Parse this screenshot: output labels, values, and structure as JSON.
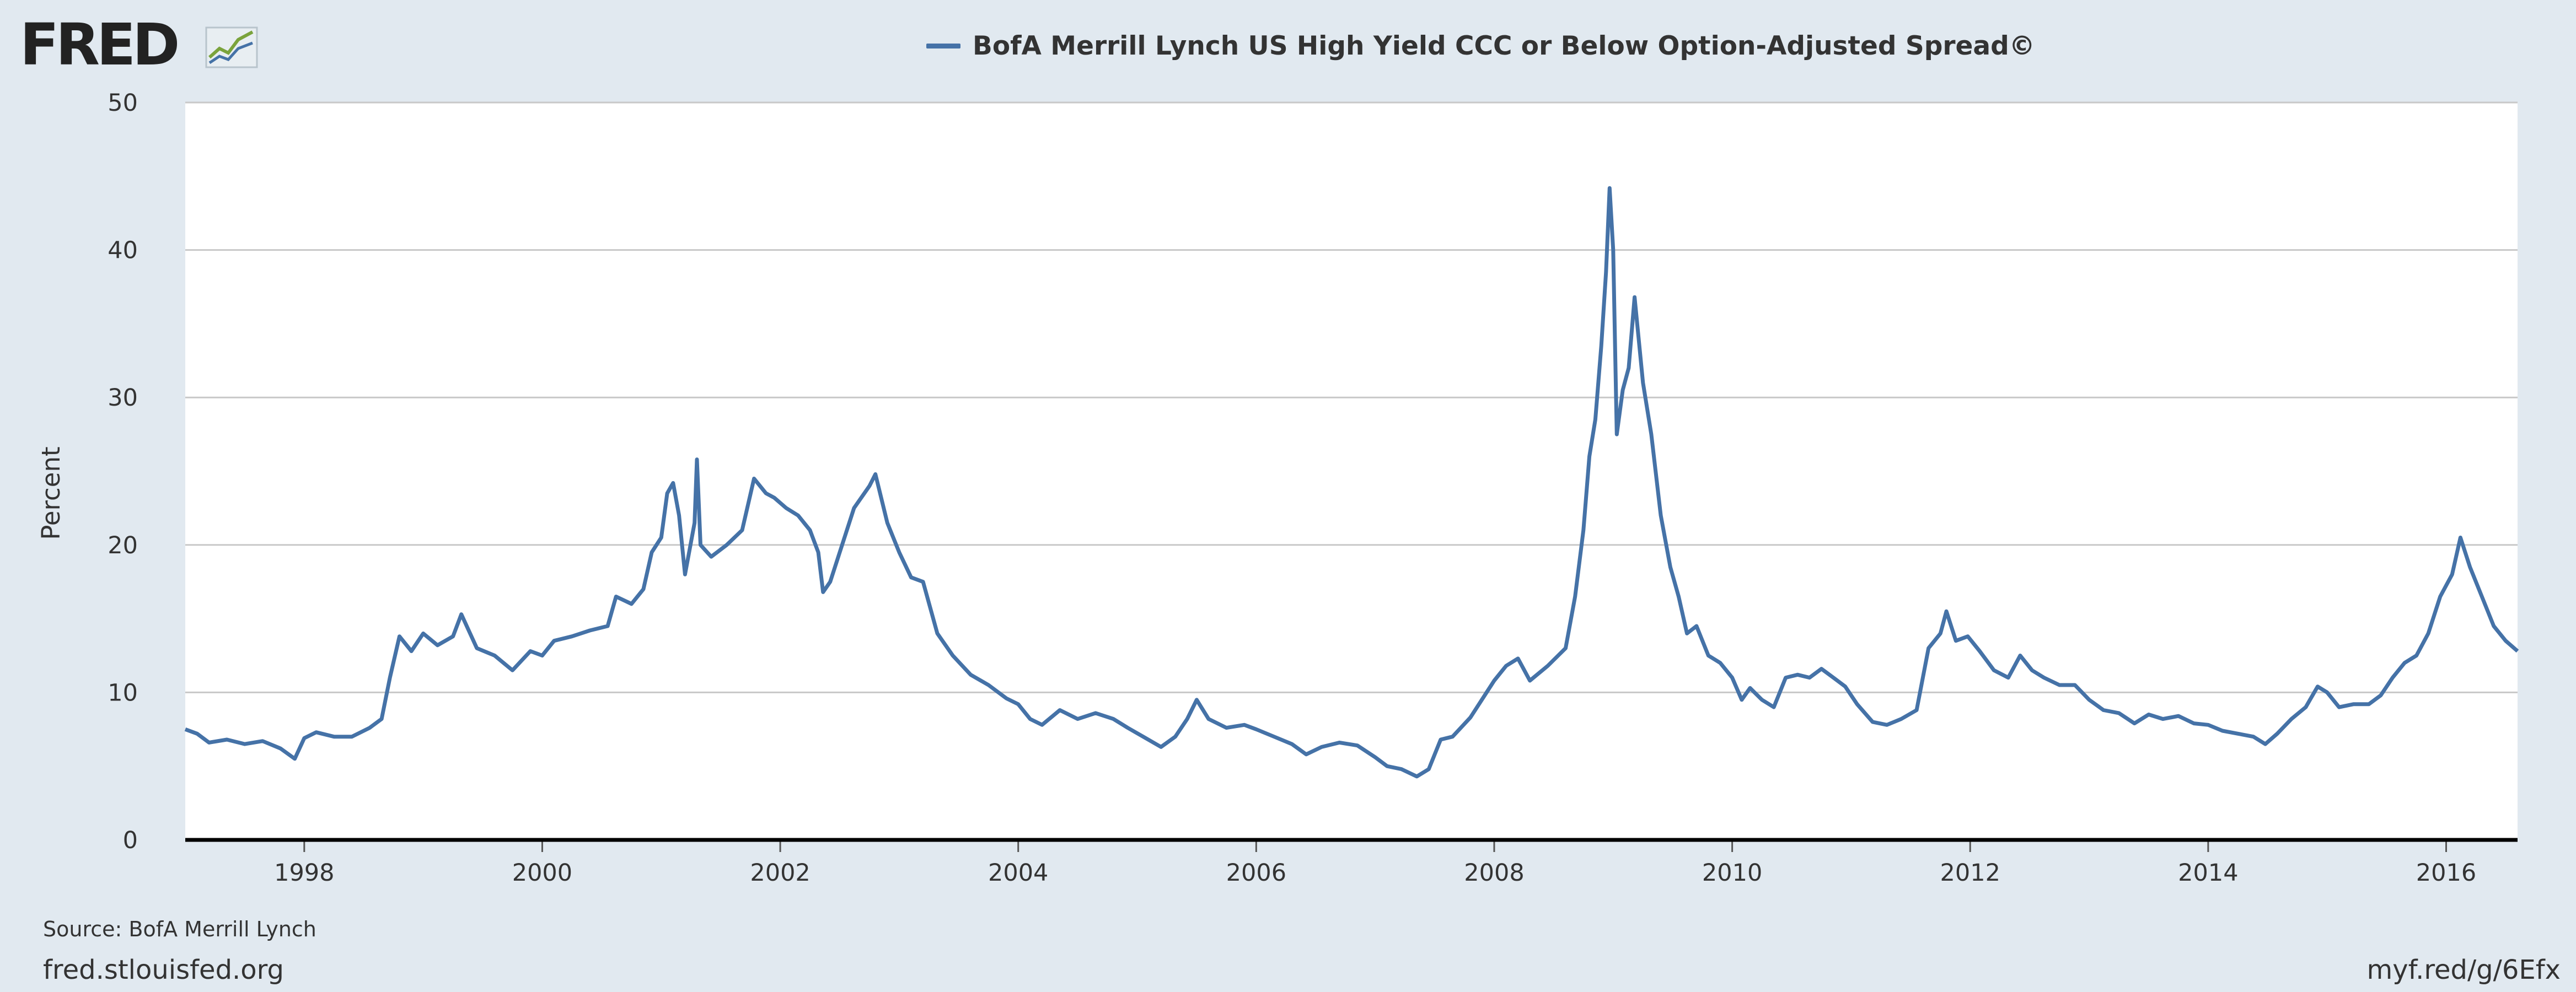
{
  "brand": {
    "logo_text": "FRED",
    "logo_icon": "fred-chart-icon"
  },
  "legend": {
    "label": "BofA Merrill Lynch US High Yield CCC or Below Option-Adjusted Spread©",
    "color": "#4572a7"
  },
  "footer": {
    "source": "Source: BofA Merrill Lynch",
    "site": "fred.stlouisfed.org",
    "short_url": "myf.red/g/6Efx"
  },
  "chart_data": {
    "type": "line",
    "ylabel": "Percent",
    "ylim": [
      0,
      50
    ],
    "xlim": [
      1997.0,
      2016.6
    ],
    "y_ticks": [
      0,
      10,
      20,
      30,
      40,
      50
    ],
    "x_ticks": [
      1998,
      2000,
      2002,
      2004,
      2006,
      2008,
      2010,
      2012,
      2014,
      2016
    ],
    "grid": true,
    "legend_position": "top-center",
    "series": [
      {
        "name": "BofA Merrill Lynch US High Yield CCC or Below Option-Adjusted Spread©",
        "color": "#4572a7",
        "points": [
          [
            1997.0,
            7.5
          ],
          [
            1997.1,
            7.2
          ],
          [
            1997.2,
            6.6
          ],
          [
            1997.35,
            6.8
          ],
          [
            1997.5,
            6.5
          ],
          [
            1997.65,
            6.7
          ],
          [
            1997.8,
            6.2
          ],
          [
            1997.92,
            5.5
          ],
          [
            1998.0,
            6.9
          ],
          [
            1998.1,
            7.3
          ],
          [
            1998.25,
            7.0
          ],
          [
            1998.4,
            7.0
          ],
          [
            1998.55,
            7.6
          ],
          [
            1998.65,
            8.2
          ],
          [
            1998.72,
            11.0
          ],
          [
            1998.8,
            13.8
          ],
          [
            1998.9,
            12.8
          ],
          [
            1999.0,
            14.0
          ],
          [
            1999.12,
            13.2
          ],
          [
            1999.25,
            13.8
          ],
          [
            1999.32,
            15.3
          ],
          [
            1999.45,
            13.0
          ],
          [
            1999.6,
            12.5
          ],
          [
            1999.75,
            11.5
          ],
          [
            1999.9,
            12.8
          ],
          [
            2000.0,
            12.5
          ],
          [
            2000.1,
            13.5
          ],
          [
            2000.25,
            13.8
          ],
          [
            2000.4,
            14.2
          ],
          [
            2000.55,
            14.5
          ],
          [
            2000.62,
            16.5
          ],
          [
            2000.75,
            16.0
          ],
          [
            2000.85,
            17.0
          ],
          [
            2000.92,
            19.5
          ],
          [
            2001.0,
            20.5
          ],
          [
            2001.05,
            23.5
          ],
          [
            2001.1,
            24.2
          ],
          [
            2001.15,
            22.0
          ],
          [
            2001.2,
            18.0
          ],
          [
            2001.28,
            21.5
          ],
          [
            2001.3,
            25.8
          ],
          [
            2001.33,
            20.0
          ],
          [
            2001.42,
            19.2
          ],
          [
            2001.55,
            20.0
          ],
          [
            2001.68,
            21.0
          ],
          [
            2001.78,
            24.5
          ],
          [
            2001.88,
            23.5
          ],
          [
            2001.95,
            23.2
          ],
          [
            2002.05,
            22.5
          ],
          [
            2002.15,
            22.0
          ],
          [
            2002.25,
            21.0
          ],
          [
            2002.32,
            19.5
          ],
          [
            2002.36,
            16.8
          ],
          [
            2002.42,
            17.5
          ],
          [
            2002.52,
            20.0
          ],
          [
            2002.62,
            22.5
          ],
          [
            2002.75,
            24.0
          ],
          [
            2002.8,
            24.8
          ],
          [
            2002.9,
            21.5
          ],
          [
            2003.0,
            19.5
          ],
          [
            2003.1,
            17.8
          ],
          [
            2003.2,
            17.5
          ],
          [
            2003.32,
            14.0
          ],
          [
            2003.45,
            12.5
          ],
          [
            2003.6,
            11.2
          ],
          [
            2003.75,
            10.5
          ],
          [
            2003.9,
            9.6
          ],
          [
            2004.0,
            9.2
          ],
          [
            2004.1,
            8.2
          ],
          [
            2004.2,
            7.8
          ],
          [
            2004.35,
            8.8
          ],
          [
            2004.5,
            8.2
          ],
          [
            2004.65,
            8.6
          ],
          [
            2004.8,
            8.2
          ],
          [
            2004.92,
            7.6
          ],
          [
            2005.05,
            7.0
          ],
          [
            2005.2,
            6.3
          ],
          [
            2005.32,
            7.0
          ],
          [
            2005.42,
            8.2
          ],
          [
            2005.5,
            9.5
          ],
          [
            2005.6,
            8.2
          ],
          [
            2005.75,
            7.6
          ],
          [
            2005.9,
            7.8
          ],
          [
            2006.0,
            7.5
          ],
          [
            2006.15,
            7.0
          ],
          [
            2006.3,
            6.5
          ],
          [
            2006.42,
            5.8
          ],
          [
            2006.55,
            6.3
          ],
          [
            2006.7,
            6.6
          ],
          [
            2006.85,
            6.4
          ],
          [
            2007.0,
            5.6
          ],
          [
            2007.1,
            5.0
          ],
          [
            2007.22,
            4.8
          ],
          [
            2007.35,
            4.3
          ],
          [
            2007.45,
            4.8
          ],
          [
            2007.55,
            6.8
          ],
          [
            2007.65,
            7.0
          ],
          [
            2007.8,
            8.3
          ],
          [
            2007.92,
            9.8
          ],
          [
            2008.0,
            10.8
          ],
          [
            2008.1,
            11.8
          ],
          [
            2008.2,
            12.3
          ],
          [
            2008.3,
            10.8
          ],
          [
            2008.45,
            11.8
          ],
          [
            2008.6,
            13.0
          ],
          [
            2008.68,
            16.5
          ],
          [
            2008.75,
            21.0
          ],
          [
            2008.8,
            26.0
          ],
          [
            2008.85,
            28.5
          ],
          [
            2008.9,
            33.5
          ],
          [
            2008.94,
            38.5
          ],
          [
            2008.97,
            44.2
          ],
          [
            2009.0,
            40.0
          ],
          [
            2009.03,
            27.5
          ],
          [
            2009.08,
            30.5
          ],
          [
            2009.13,
            32.0
          ],
          [
            2009.18,
            36.8
          ],
          [
            2009.25,
            31.0
          ],
          [
            2009.32,
            27.5
          ],
          [
            2009.4,
            22.0
          ],
          [
            2009.48,
            18.5
          ],
          [
            2009.55,
            16.5
          ],
          [
            2009.62,
            14.0
          ],
          [
            2009.7,
            14.5
          ],
          [
            2009.8,
            12.5
          ],
          [
            2009.9,
            12.0
          ],
          [
            2010.0,
            11.0
          ],
          [
            2010.08,
            9.5
          ],
          [
            2010.15,
            10.3
          ],
          [
            2010.25,
            9.5
          ],
          [
            2010.35,
            9.0
          ],
          [
            2010.45,
            11.0
          ],
          [
            2010.55,
            11.2
          ],
          [
            2010.65,
            11.0
          ],
          [
            2010.75,
            11.6
          ],
          [
            2010.85,
            11.0
          ],
          [
            2010.95,
            10.4
          ],
          [
            2011.05,
            9.2
          ],
          [
            2011.18,
            8.0
          ],
          [
            2011.3,
            7.8
          ],
          [
            2011.42,
            8.2
          ],
          [
            2011.55,
            8.8
          ],
          [
            2011.65,
            13.0
          ],
          [
            2011.75,
            14.0
          ],
          [
            2011.8,
            15.5
          ],
          [
            2011.88,
            13.5
          ],
          [
            2011.98,
            13.8
          ],
          [
            2012.08,
            12.8
          ],
          [
            2012.2,
            11.5
          ],
          [
            2012.32,
            11.0
          ],
          [
            2012.42,
            12.5
          ],
          [
            2012.52,
            11.5
          ],
          [
            2012.62,
            11.0
          ],
          [
            2012.75,
            10.5
          ],
          [
            2012.88,
            10.5
          ],
          [
            2013.0,
            9.5
          ],
          [
            2013.12,
            8.8
          ],
          [
            2013.25,
            8.6
          ],
          [
            2013.38,
            7.9
          ],
          [
            2013.5,
            8.5
          ],
          [
            2013.62,
            8.2
          ],
          [
            2013.75,
            8.4
          ],
          [
            2013.88,
            7.9
          ],
          [
            2014.0,
            7.8
          ],
          [
            2014.12,
            7.4
          ],
          [
            2014.25,
            7.2
          ],
          [
            2014.38,
            7.0
          ],
          [
            2014.48,
            6.5
          ],
          [
            2014.58,
            7.2
          ],
          [
            2014.7,
            8.2
          ],
          [
            2014.82,
            9.0
          ],
          [
            2014.92,
            10.4
          ],
          [
            2015.0,
            10.0
          ],
          [
            2015.1,
            9.0
          ],
          [
            2015.22,
            9.2
          ],
          [
            2015.35,
            9.2
          ],
          [
            2015.45,
            9.8
          ],
          [
            2015.55,
            11.0
          ],
          [
            2015.65,
            12.0
          ],
          [
            2015.75,
            12.5
          ],
          [
            2015.85,
            14.0
          ],
          [
            2015.95,
            16.5
          ],
          [
            2016.05,
            18.0
          ],
          [
            2016.12,
            20.5
          ],
          [
            2016.2,
            18.5
          ],
          [
            2016.3,
            16.5
          ],
          [
            2016.4,
            14.5
          ],
          [
            2016.5,
            13.5
          ],
          [
            2016.6,
            12.8
          ]
        ]
      }
    ]
  }
}
